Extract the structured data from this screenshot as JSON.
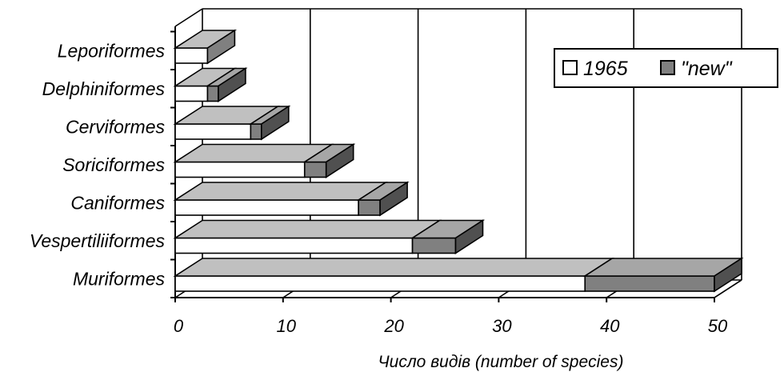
{
  "chart_data": {
    "type": "bar",
    "orientation": "horizontal",
    "stacked": true,
    "three_d": true,
    "categories": [
      "Leporiformes",
      "Delphiniformes",
      "Cerviformes",
      "Soriciformes",
      "Caniformes",
      "Vespertiliiformes",
      "Muriformes"
    ],
    "series": [
      {
        "name": "1965",
        "values": [
          3,
          3,
          7,
          12,
          17,
          22,
          38
        ],
        "color": "#ffffff"
      },
      {
        "name": "\"new\"",
        "values": [
          0,
          1,
          1,
          2,
          2,
          4,
          12
        ],
        "color": "#808080"
      }
    ],
    "xlabel": "Число видів (number of species)",
    "ylabel": "",
    "xlim": [
      0,
      50
    ],
    "xticks": [
      0,
      10,
      20,
      30,
      40,
      50
    ],
    "grid": "vertical",
    "legend": "top-right"
  }
}
